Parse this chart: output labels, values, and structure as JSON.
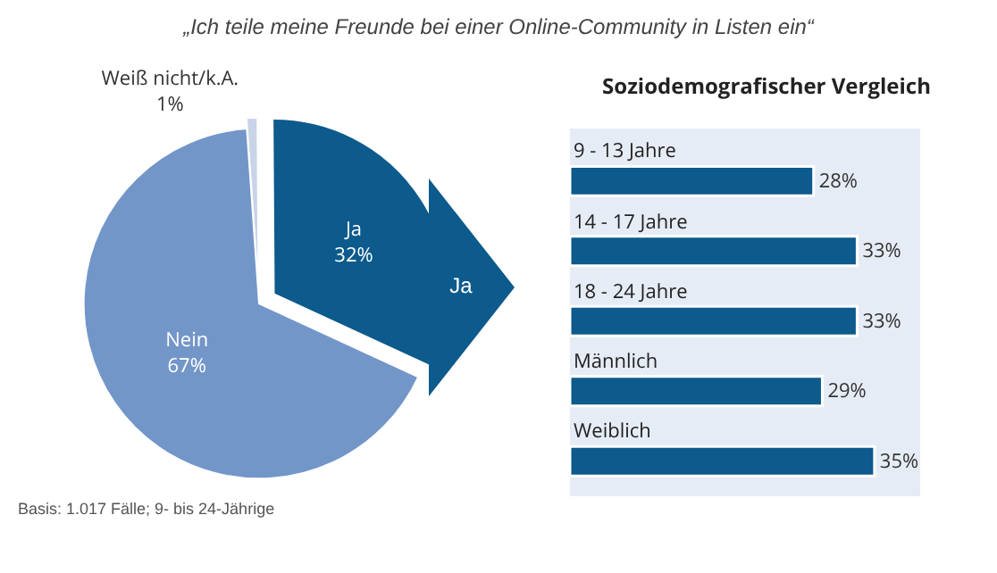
{
  "chart_data": [
    {
      "type": "pie",
      "title": "„Ich teile meine Freunde bei einer Online-Community in Listen ein“",
      "categories": [
        "Weiß nicht/k.A.",
        "Ja",
        "Nein"
      ],
      "values": [
        1,
        32,
        67
      ],
      "value_labels": [
        "1%",
        "32%",
        "67%"
      ],
      "colors": [
        "#c9d4e8",
        "#0d5a8c",
        "#7396c9"
      ],
      "annotations": [
        "Ja",
        "Basis: 1.017 Fälle; 9- bis 24-Jährige"
      ]
    },
    {
      "type": "bar",
      "orientation": "horizontal",
      "title": "Soziodemografischer Vergleich",
      "categories": [
        "9 - 13 Jahre",
        "14 - 17 Jahre",
        "18 - 24 Jahre",
        "Männlich",
        "Weiblich"
      ],
      "values": [
        28,
        33,
        33,
        29,
        35
      ],
      "value_labels": [
        "28%",
        "33%",
        "33%",
        "29%",
        "35%"
      ],
      "color": "#0d5a8c"
    }
  ]
}
